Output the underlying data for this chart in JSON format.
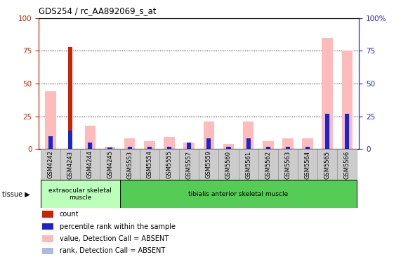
{
  "title": "GDS254 / rc_AA892069_s_at",
  "samples": [
    "GSM4242",
    "GSM4243",
    "GSM4244",
    "GSM4245",
    "GSM5553",
    "GSM5554",
    "GSM5555",
    "GSM5557",
    "GSM5559",
    "GSM5560",
    "GSM5561",
    "GSM5562",
    "GSM5563",
    "GSM5564",
    "GSM5565",
    "GSM5566"
  ],
  "count": [
    0,
    78,
    0,
    0,
    0,
    0,
    0,
    0,
    0,
    0,
    0,
    0,
    0,
    0,
    0,
    0
  ],
  "percentile": [
    10,
    14,
    5,
    1,
    2,
    2,
    2,
    5,
    8,
    2,
    8,
    2,
    2,
    2,
    27,
    27
  ],
  "value_absent": [
    44,
    0,
    18,
    2,
    8,
    6,
    9,
    5,
    21,
    4,
    21,
    6,
    8,
    8,
    85,
    75
  ],
  "rank_absent": [
    10,
    0,
    5,
    1,
    2,
    2,
    2,
    5,
    8,
    2,
    8,
    2,
    2,
    2,
    27,
    27
  ],
  "tissue_groups": [
    {
      "label": "extraocular skeletal\nmuscle",
      "start": 0,
      "end": 3,
      "color": "#bbffbb"
    },
    {
      "label": "tibialis anterior skeletal muscle",
      "start": 3,
      "end": 16,
      "color": "#55cc55"
    }
  ],
  "ylim": [
    0,
    100
  ],
  "yticks": [
    0,
    25,
    50,
    75,
    100
  ],
  "color_count": "#cc2200",
  "color_percentile": "#2222cc",
  "color_value_absent": "#ffbbbb",
  "color_rank_absent": "#aabbdd",
  "bg_color": "#ffffff",
  "plot_bg": "#ffffff",
  "tick_bg": "#cccccc"
}
